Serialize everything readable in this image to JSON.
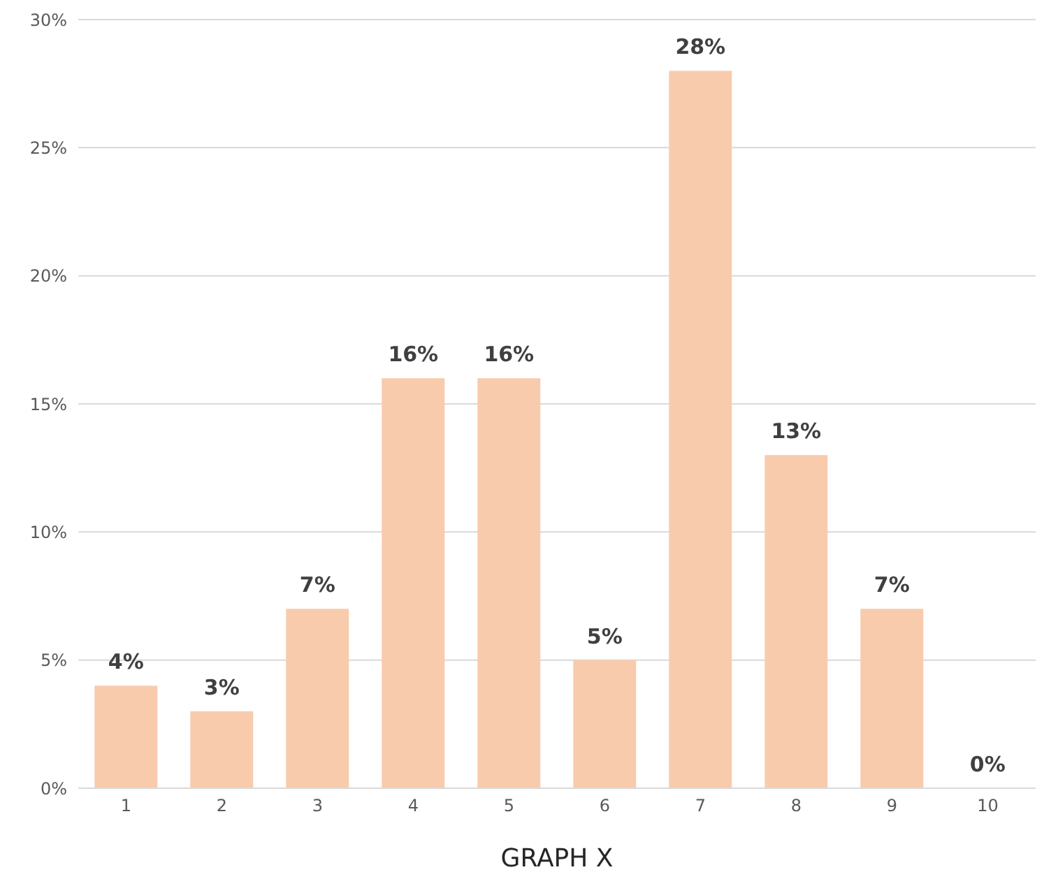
{
  "chart_data": {
    "type": "bar",
    "xlabel": "GRAPH X",
    "categories": [
      "1",
      "2",
      "3",
      "4",
      "5",
      "6",
      "7",
      "8",
      "9",
      "10"
    ],
    "values": [
      4,
      3,
      7,
      16,
      16,
      5,
      28,
      13,
      7,
      0
    ],
    "value_labels": [
      "4%",
      "3%",
      "7%",
      "16%",
      "16%",
      "5%",
      "28%",
      "13%",
      "7%",
      "0%"
    ],
    "color": "#f8cbad",
    "ylim": [
      0,
      30
    ],
    "yticks": [
      {
        "value": 0,
        "label": "0%"
      },
      {
        "value": 5,
        "label": "5%"
      },
      {
        "value": 10,
        "label": "10%"
      },
      {
        "value": 15,
        "label": "15%"
      },
      {
        "value": 20,
        "label": "20%"
      },
      {
        "value": 25,
        "label": "25%"
      },
      {
        "value": 30,
        "label": "30%"
      }
    ],
    "grid": "y",
    "legend": false
  }
}
